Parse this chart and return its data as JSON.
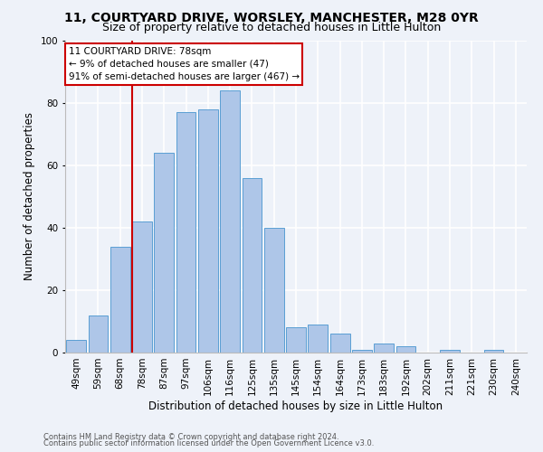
{
  "title": "11, COURTYARD DRIVE, WORSLEY, MANCHESTER, M28 0YR",
  "subtitle": "Size of property relative to detached houses in Little Hulton",
  "xlabel": "Distribution of detached houses by size in Little Hulton",
  "ylabel": "Number of detached properties",
  "footnote1": "Contains HM Land Registry data © Crown copyright and database right 2024.",
  "footnote2": "Contains public sector information licensed under the Open Government Licence v3.0.",
  "categories": [
    "49sqm",
    "59sqm",
    "68sqm",
    "78sqm",
    "87sqm",
    "97sqm",
    "106sqm",
    "116sqm",
    "125sqm",
    "135sqm",
    "145sqm",
    "154sqm",
    "164sqm",
    "173sqm",
    "183sqm",
    "192sqm",
    "202sqm",
    "211sqm",
    "221sqm",
    "230sqm",
    "240sqm"
  ],
  "values": [
    4,
    12,
    34,
    42,
    64,
    77,
    78,
    84,
    56,
    40,
    8,
    9,
    6,
    1,
    3,
    2,
    0,
    1,
    0,
    1,
    0
  ],
  "bar_color": "#aec6e8",
  "bar_edge_color": "#5a9fd4",
  "property_line_label": "11 COURTYARD DRIVE: 78sqm",
  "annotation_line1": "← 9% of detached houses are smaller (47)",
  "annotation_line2": "91% of semi-detached houses are larger (467) →",
  "annotation_box_color": "#cc0000",
  "ylim": [
    0,
    100
  ],
  "yticks": [
    0,
    20,
    40,
    60,
    80,
    100
  ],
  "background_color": "#eef2f9",
  "grid_color": "#ffffff",
  "title_fontsize": 10,
  "subtitle_fontsize": 9,
  "ylabel_fontsize": 8.5,
  "xlabel_fontsize": 8.5,
  "tick_fontsize": 7.5,
  "annot_fontsize": 7.5,
  "footnote_fontsize": 6.0
}
